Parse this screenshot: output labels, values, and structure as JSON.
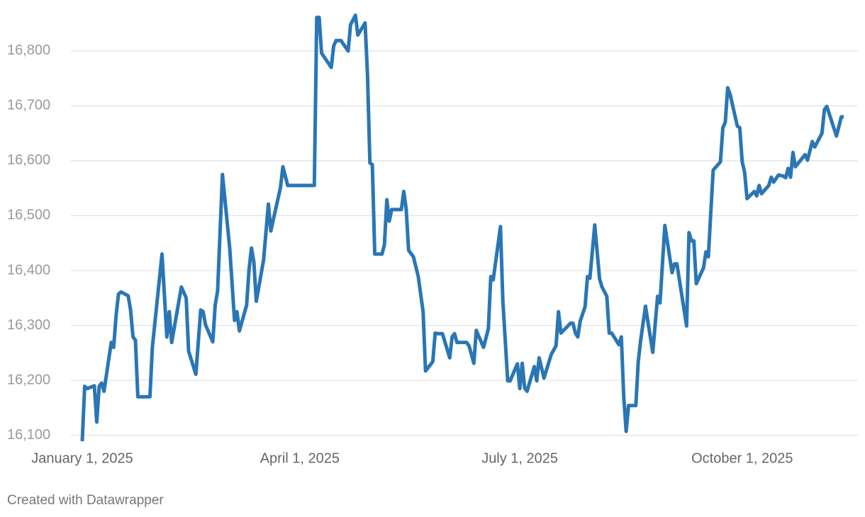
{
  "chart_data": {
    "type": "line",
    "x": [
      "2025-01-01",
      "2025-01-02",
      "2025-01-03",
      "2025-01-06",
      "2025-01-07",
      "2025-01-08",
      "2025-01-09",
      "2025-01-10",
      "2025-01-13",
      "2025-01-14",
      "2025-01-15",
      "2025-01-16",
      "2025-01-17",
      "2025-01-20",
      "2025-01-21",
      "2025-01-22",
      "2025-01-23",
      "2025-01-24",
      "2025-01-29",
      "2025-01-30",
      "2025-02-03",
      "2025-02-05",
      "2025-02-06",
      "2025-02-07",
      "2025-02-11",
      "2025-02-13",
      "2025-02-14",
      "2025-02-17",
      "2025-02-19",
      "2025-02-20",
      "2025-02-21",
      "2025-02-24",
      "2025-02-25",
      "2025-02-26",
      "2025-02-28",
      "2025-03-03",
      "2025-03-05",
      "2025-03-06",
      "2025-03-07",
      "2025-03-10",
      "2025-03-11",
      "2025-03-12",
      "2025-03-13",
      "2025-03-14",
      "2025-03-17",
      "2025-03-19",
      "2025-03-20",
      "2025-03-21",
      "2025-03-24",
      "2025-03-25",
      "2025-03-27",
      "2025-04-07",
      "2025-04-08",
      "2025-04-09",
      "2025-04-10",
      "2025-04-14",
      "2025-04-15",
      "2025-04-16",
      "2025-04-18",
      "2025-04-21",
      "2025-04-22",
      "2025-04-24",
      "2025-04-25",
      "2025-04-28",
      "2025-04-29",
      "2025-04-30",
      "2025-05-01",
      "2025-05-02",
      "2025-05-05",
      "2025-05-06",
      "2025-05-07",
      "2025-05-08",
      "2025-05-09",
      "2025-05-13",
      "2025-05-14",
      "2025-05-15",
      "2025-05-16",
      "2025-05-18",
      "2025-05-20",
      "2025-05-22",
      "2025-05-23",
      "2025-05-26",
      "2025-05-27",
      "2025-05-28",
      "2025-05-30",
      "2025-06-02",
      "2025-06-03",
      "2025-06-04",
      "2025-06-05",
      "2025-06-09",
      "2025-06-10",
      "2025-06-12",
      "2025-06-13",
      "2025-06-16",
      "2025-06-18",
      "2025-06-19",
      "2025-06-20",
      "2025-06-23",
      "2025-06-24",
      "2025-06-26",
      "2025-06-27",
      "2025-06-30",
      "2025-07-01",
      "2025-07-02",
      "2025-07-03",
      "2025-07-04",
      "2025-07-07",
      "2025-07-08",
      "2025-07-09",
      "2025-07-11",
      "2025-07-14",
      "2025-07-16",
      "2025-07-17",
      "2025-07-18",
      "2025-07-22",
      "2025-07-23",
      "2025-07-24",
      "2025-07-25",
      "2025-07-26",
      "2025-07-28",
      "2025-07-29",
      "2025-07-30",
      "2025-08-01",
      "2025-08-03",
      "2025-08-04",
      "2025-08-06",
      "2025-08-07",
      "2025-08-08",
      "2025-08-11",
      "2025-08-12",
      "2025-08-13",
      "2025-08-14",
      "2025-08-15",
      "2025-08-18",
      "2025-08-19",
      "2025-08-20",
      "2025-08-22",
      "2025-08-25",
      "2025-08-27",
      "2025-08-28",
      "2025-08-30",
      "2025-09-02",
      "2025-09-03",
      "2025-09-04",
      "2025-09-08",
      "2025-09-09",
      "2025-09-10",
      "2025-09-11",
      "2025-09-12",
      "2025-09-15",
      "2025-09-16",
      "2025-09-17",
      "2025-09-18",
      "2025-09-19",
      "2025-09-22",
      "2025-09-23",
      "2025-09-24",
      "2025-09-25",
      "2025-09-26",
      "2025-09-29",
      "2025-09-30",
      "2025-10-01",
      "2025-10-02",
      "2025-10-03",
      "2025-10-06",
      "2025-10-07",
      "2025-10-08",
      "2025-10-09",
      "2025-10-12",
      "2025-10-13",
      "2025-10-14",
      "2025-10-16",
      "2025-10-18",
      "2025-10-19",
      "2025-10-20",
      "2025-10-21",
      "2025-10-22",
      "2025-10-23",
      "2025-10-27",
      "2025-10-28",
      "2025-10-30",
      "2025-10-31",
      "2025-11-03",
      "2025-11-04",
      "2025-11-05",
      "2025-11-09",
      "2025-11-11",
      "2025-11-12"
    ],
    "series": [
      {
        "color": "#2a76b5",
        "values": [
          16089,
          16189,
          16185,
          16190,
          16124,
          16189,
          16195,
          16180,
          16269,
          16260,
          16318,
          16357,
          16361,
          16354,
          16328,
          16279,
          16273,
          16170,
          16170,
          16260,
          16430,
          16279,
          16325,
          16269,
          16370,
          16350,
          16253,
          16211,
          16328,
          16325,
          16301,
          16270,
          16337,
          16363,
          16575,
          16441,
          16309,
          16325,
          16290,
          16337,
          16402,
          16441,
          16415,
          16344,
          16419,
          16521,
          16472,
          16492,
          16551,
          16589,
          16555,
          16555,
          16861,
          16861,
          16796,
          16770,
          16809,
          16819,
          16819,
          16800,
          16848,
          16865,
          16829,
          16851,
          16757,
          16596,
          16593,
          16430,
          16430,
          16447,
          16529,
          16490,
          16511,
          16511,
          16544,
          16512,
          16437,
          16425,
          16389,
          16325,
          16217,
          16234,
          16286,
          16285,
          16285,
          16241,
          16279,
          16285,
          16269,
          16269,
          16263,
          16231,
          16291,
          16260,
          16294,
          16389,
          16383,
          16480,
          16344,
          16199,
          16199,
          16230,
          16185,
          16231,
          16186,
          16180,
          16225,
          16199,
          16241,
          16204,
          16247,
          16263,
          16325,
          16286,
          16304,
          16304,
          16286,
          16279,
          16308,
          16334,
          16389,
          16386,
          16483,
          16385,
          16370,
          16353,
          16286,
          16286,
          16265,
          16279,
          16170,
          16107,
          16154,
          16154,
          16234,
          16273,
          16335,
          16251,
          16353,
          16341,
          16482,
          16396,
          16412,
          16412,
          16299,
          16469,
          16454,
          16454,
          16376,
          16405,
          16434,
          16425,
          16505,
          16583,
          16598,
          16660,
          16670,
          16733,
          16721,
          16663,
          16660,
          16598,
          16579,
          16531,
          16544,
          16536,
          16555,
          16540,
          16555,
          16570,
          16561,
          16574,
          16572,
          16569,
          16586,
          16570,
          16615,
          16589,
          16611,
          16601,
          16635,
          16625,
          16650,
          16693,
          16699,
          16645,
          16680,
          16680
        ]
      }
    ],
    "xlim": [
      "2025-01-01",
      "2025-11-12"
    ],
    "xticks": [
      {
        "value": "2025-01-01",
        "label": "January 1, 2025"
      },
      {
        "value": "2025-04-01",
        "label": "April 1, 2025"
      },
      {
        "value": "2025-07-01",
        "label": "July 1, 2025"
      },
      {
        "value": "2025-10-01",
        "label": "October 1, 2025"
      }
    ],
    "ylim": [
      16080,
      16867
    ],
    "yticks": [
      {
        "value": 16100,
        "label": "16,100"
      },
      {
        "value": 16200,
        "label": "16,200"
      },
      {
        "value": 16300,
        "label": "16,300"
      },
      {
        "value": 16400,
        "label": "16,400"
      },
      {
        "value": 16500,
        "label": "16,500"
      },
      {
        "value": 16600,
        "label": "16,600"
      },
      {
        "value": 16700,
        "label": "16,700"
      },
      {
        "value": 16800,
        "label": "16,800"
      }
    ],
    "grid": true,
    "source": "Created with Datawrapper"
  }
}
